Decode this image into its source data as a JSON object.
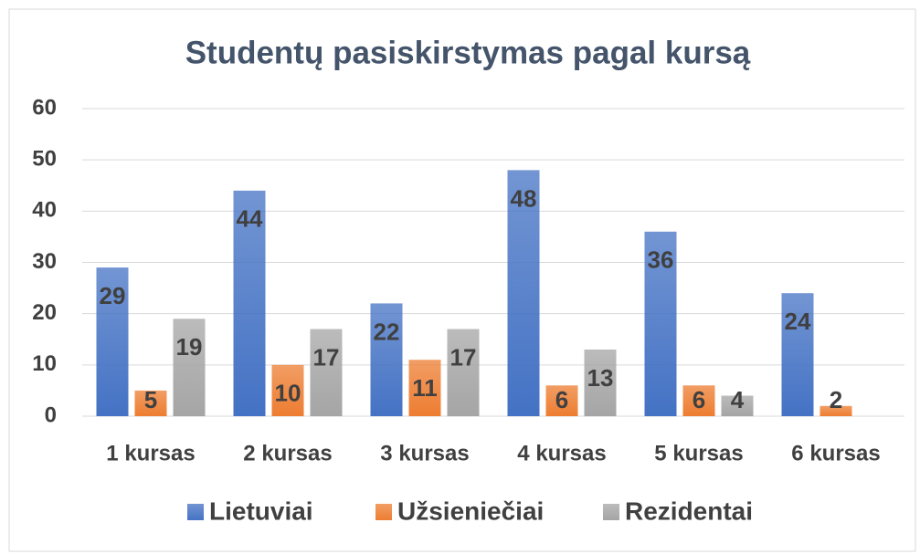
{
  "chart_data": {
    "type": "bar",
    "title": "Studentų pasiskirstymas pagal kursą",
    "categories": [
      "1 kursas",
      "2 kursas",
      "3 kursas",
      "4 kursas",
      "5 kursas",
      "6 kursas"
    ],
    "series": [
      {
        "name": "Lietuviai",
        "color": "#4472c4",
        "values": [
          29,
          44,
          22,
          48,
          36,
          24
        ]
      },
      {
        "name": "Užsieniečiai",
        "color": "#ed7d31",
        "values": [
          5,
          10,
          11,
          6,
          6,
          2
        ]
      },
      {
        "name": "Rezidentai",
        "color": "#a5a5a5",
        "values": [
          19,
          17,
          17,
          13,
          4,
          null
        ]
      }
    ],
    "ylim": [
      0,
      60
    ],
    "yticks": [
      0,
      10,
      20,
      30,
      40,
      50,
      60
    ],
    "grid": true,
    "legend": "bottom"
  }
}
